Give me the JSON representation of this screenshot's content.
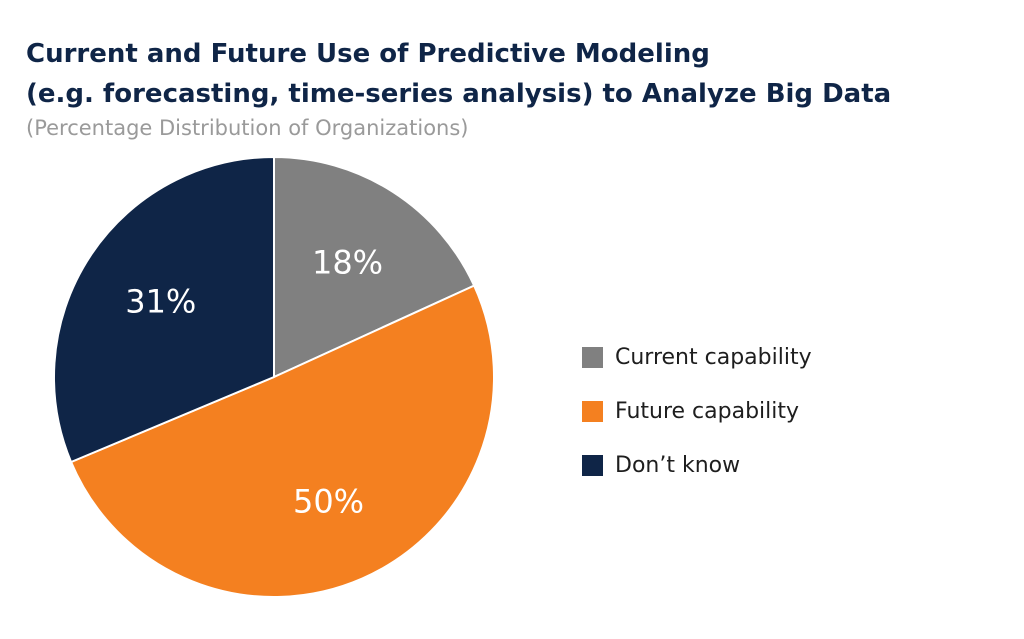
{
  "header": {
    "title_lines": [
      "Current and Future Use of Predictive Modeling",
      "(e.g. forecasting, time-series analysis) to Analyze Big Data"
    ],
    "subtitle": "(Percentage Distribution of Organizations)"
  },
  "chart_data": {
    "type": "pie",
    "title": "Current and Future Use of Predictive Modeling (e.g. forecasting, time-series analysis) to Analyze Big Data",
    "subtitle": "(Percentage Distribution of Organizations)",
    "categories": [
      "Current capability",
      "Future capability",
      "Don’t know"
    ],
    "values": [
      18,
      50,
      31
    ],
    "data_labels": [
      "18%",
      "50%",
      "31%"
    ],
    "colors": [
      "#808080",
      "#f48020",
      "#0f2547"
    ],
    "legend_position": "right",
    "start_angle": "12 o'clock",
    "direction": "clockwise"
  }
}
